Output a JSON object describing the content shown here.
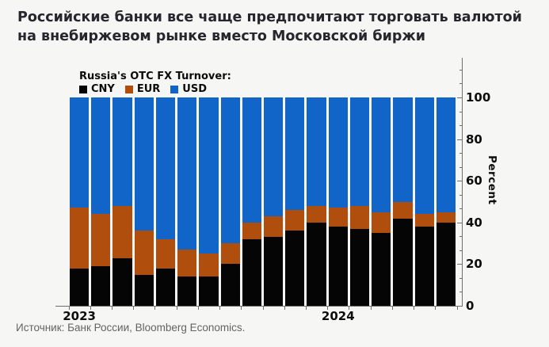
{
  "title": "Российские банки все чаще предпочитают торговать валютой на внебиржевом рынке вместо Московской биржи",
  "source": "Источник: Банк России, Bloomberg Economics.",
  "legend": {
    "title": "Russia's OTC FX Turnover:",
    "items": [
      {
        "label": "CNY",
        "color": "#050505"
      },
      {
        "label": "EUR",
        "color": "#b04e0e"
      },
      {
        "label": "USD",
        "color": "#1165c9"
      }
    ]
  },
  "colors": {
    "cny": "#050505",
    "eur": "#b04e0e",
    "usd": "#1165c9",
    "background": "#f6f6f4",
    "axis": "#6e6e6e",
    "headline": "#26262e",
    "source_text": "#646464"
  },
  "chart_data": {
    "type": "bar",
    "stacked": true,
    "unit": "percent of turnover",
    "title": "Russia's OTC FX Turnover:",
    "ylabel": "Percent",
    "ylim": [
      0,
      100
    ],
    "yticks": [
      0,
      20,
      40,
      60,
      80,
      100
    ],
    "grid": false,
    "legend_position": "top-left",
    "categories": [
      "2023-01",
      "2023-02",
      "2023-03",
      "2023-04",
      "2023-05",
      "2023-06",
      "2023-07",
      "2023-08",
      "2023-09",
      "2023-10",
      "2023-11",
      "2023-12",
      "2024-01",
      "2024-02",
      "2024-03",
      "2024-04",
      "2024-05",
      "2024-06"
    ],
    "x_axis_labels": [
      {
        "label": "2023",
        "bar_index": 0
      },
      {
        "label": "2024",
        "bar_index": 12
      }
    ],
    "series": [
      {
        "name": "CNY",
        "color": "#050505",
        "values": [
          18,
          19,
          23,
          15,
          18,
          14,
          14,
          20,
          32,
          33,
          36,
          40,
          38,
          37,
          35,
          42,
          38,
          40
        ]
      },
      {
        "name": "EUR",
        "color": "#b04e0e",
        "values": [
          29,
          25,
          25,
          21,
          14,
          13,
          11,
          10,
          8,
          10,
          10,
          8,
          9,
          11,
          10,
          8,
          6,
          5
        ]
      },
      {
        "name": "USD",
        "color": "#1165c9",
        "values": [
          53,
          56,
          52,
          64,
          68,
          73,
          75,
          70,
          60,
          57,
          54,
          52,
          53,
          52,
          55,
          50,
          56,
          55
        ]
      }
    ]
  }
}
